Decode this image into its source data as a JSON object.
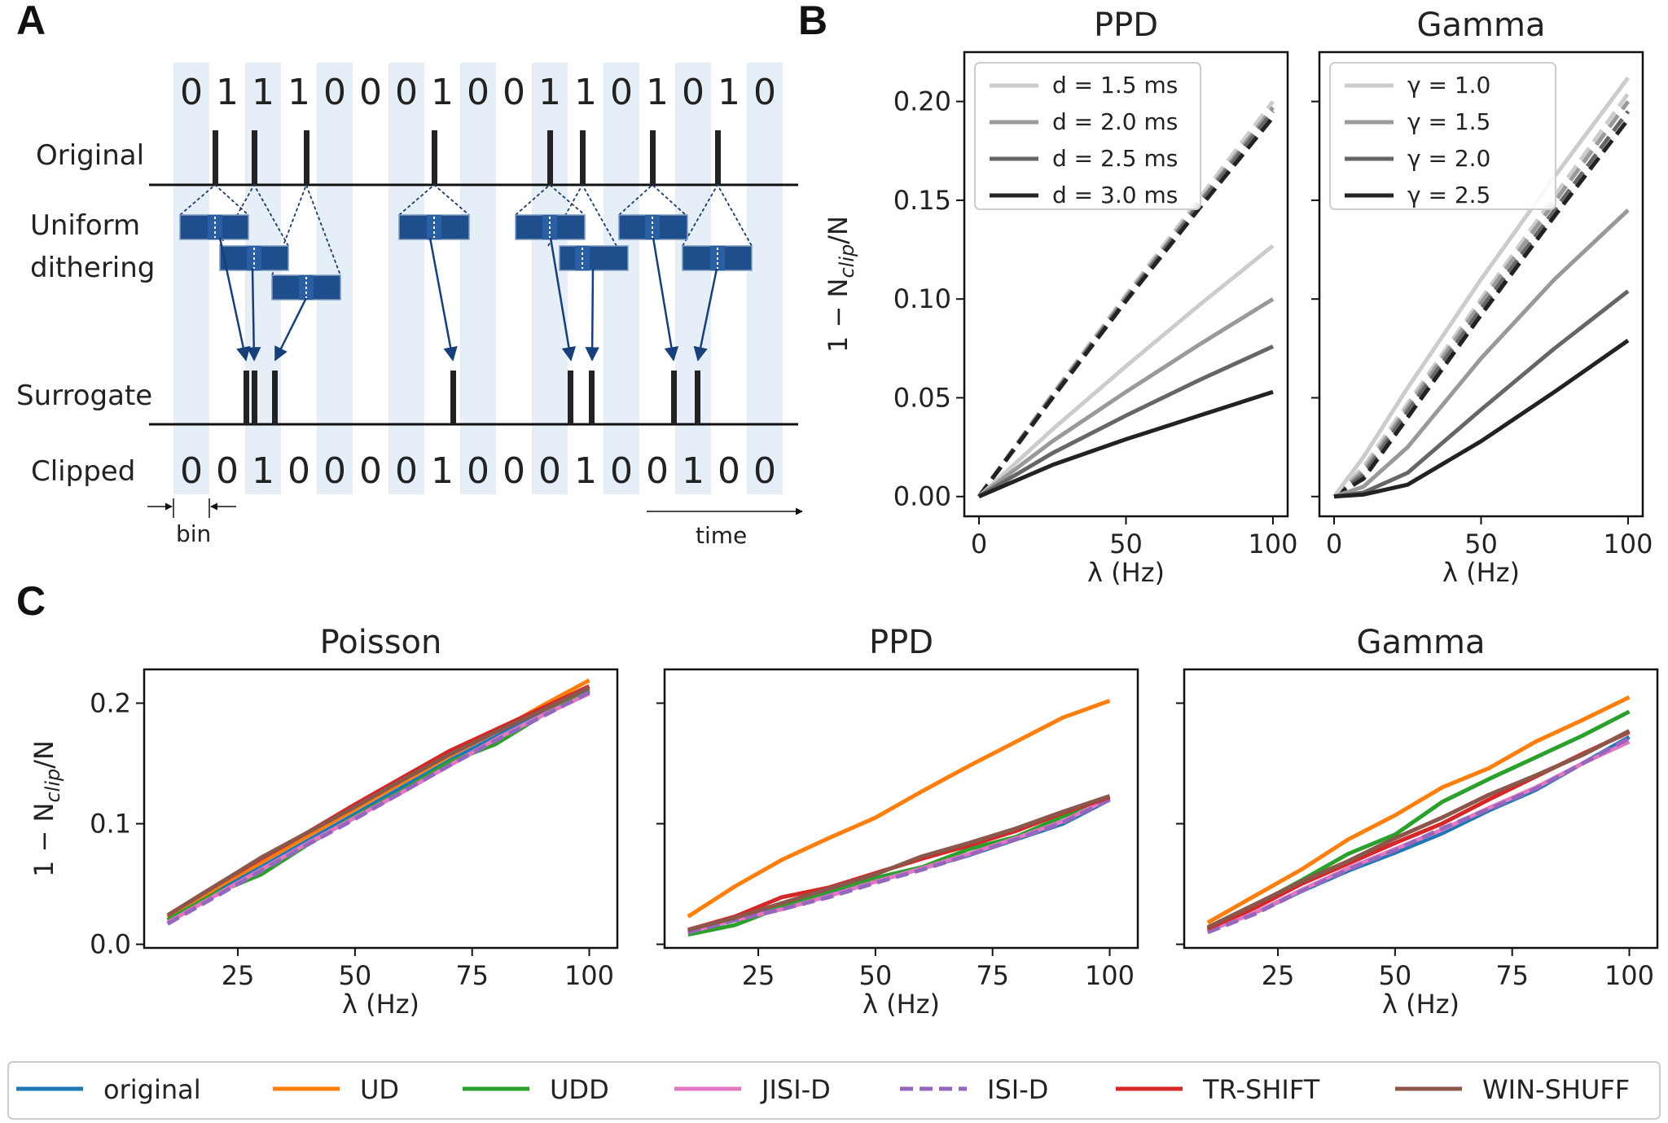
{
  "panels": {
    "a": "A",
    "b": "B",
    "c": "C"
  },
  "panel_a": {
    "original_bits": [
      "0",
      "1",
      "1",
      "1",
      "0",
      "0",
      "0",
      "1",
      "0",
      "0",
      "1",
      "1",
      "0",
      "1",
      "0",
      "1",
      "0"
    ],
    "clipped_bits": [
      "0",
      "0",
      "1",
      "0",
      "0",
      "0",
      "0",
      "1",
      "0",
      "0",
      "0",
      "1",
      "0",
      "0",
      "1",
      "0",
      "0"
    ],
    "row_labels": {
      "original": "Original",
      "dither_line1": "Uniform",
      "dither_line2": "dithering",
      "surrogate": "Surrogate",
      "clipped": "Clipped"
    },
    "bin_label": "bin",
    "time_label": "time",
    "colors": {
      "bin_shade": "#e6eef7",
      "window": "#1f4e8c",
      "arrow": "#173f7a"
    }
  },
  "chart_data": [
    {
      "type": "line",
      "title": "PPD",
      "xlabel": "λ (Hz)",
      "ylabel_main": "1 − N",
      "ylabel_sub": "clip",
      "ylabel_tail": "/N",
      "xlim": [
        -5,
        105
      ],
      "ylim": [
        -0.01,
        0.225
      ],
      "xticks": [
        0,
        50,
        100
      ],
      "xtick_labels": [
        "0",
        "50",
        "100"
      ],
      "yticks": [
        0.0,
        0.05,
        0.1,
        0.15,
        0.2
      ],
      "ytick_labels": [
        "0.00",
        "0.05",
        "0.10",
        "0.15",
        "0.20"
      ],
      "legend_position": "top-left",
      "series": [
        {
          "name": "d = 1.5 ms",
          "color": "#cccccc",
          "x": [
            0,
            25,
            50,
            75,
            100
          ],
          "values": [
            0,
            0.034,
            0.066,
            0.097,
            0.127
          ]
        },
        {
          "name": "d = 2.0 ms",
          "color": "#999999",
          "x": [
            0,
            25,
            50,
            75,
            100
          ],
          "values": [
            0,
            0.028,
            0.053,
            0.077,
            0.1
          ]
        },
        {
          "name": "d = 2.5 ms",
          "color": "#666666",
          "x": [
            0,
            25,
            50,
            75,
            100
          ],
          "values": [
            0,
            0.022,
            0.041,
            0.059,
            0.076
          ]
        },
        {
          "name": "d = 3.0 ms",
          "color": "#222222",
          "x": [
            0,
            25,
            50,
            75,
            100
          ],
          "values": [
            0,
            0.016,
            0.029,
            0.041,
            0.053
          ]
        }
      ],
      "dashed_series": [
        {
          "color": "#cccccc",
          "x": [
            0,
            25,
            50,
            75,
            100
          ],
          "values": [
            0,
            0.052,
            0.102,
            0.151,
            0.2
          ]
        },
        {
          "color": "#999999",
          "x": [
            0,
            25,
            50,
            75,
            100
          ],
          "values": [
            0,
            0.051,
            0.101,
            0.149,
            0.197
          ]
        },
        {
          "color": "#666666",
          "x": [
            0,
            25,
            50,
            75,
            100
          ],
          "values": [
            0,
            0.051,
            0.1,
            0.148,
            0.195
          ]
        },
        {
          "color": "#222222",
          "x": [
            0,
            25,
            50,
            75,
            100
          ],
          "values": [
            0,
            0.05,
            0.099,
            0.146,
            0.192
          ]
        }
      ]
    },
    {
      "type": "line",
      "title": "Gamma",
      "xlabel": "λ (Hz)",
      "xlim": [
        -5,
        105
      ],
      "ylim": [
        -0.01,
        0.225
      ],
      "xticks": [
        0,
        50,
        100
      ],
      "xtick_labels": [
        "0",
        "50",
        "100"
      ],
      "yticks": [
        0.0,
        0.05,
        0.1,
        0.15,
        0.2
      ],
      "legend_position": "top-left",
      "series": [
        {
          "name": "γ = 1.0",
          "color": "#cccccc",
          "x": [
            0,
            10,
            25,
            50,
            75,
            100
          ],
          "values": [
            0,
            0.02,
            0.055,
            0.11,
            0.162,
            0.212
          ]
        },
        {
          "name": "γ = 1.5",
          "color": "#999999",
          "x": [
            0,
            10,
            25,
            50,
            75,
            100
          ],
          "values": [
            0,
            0.005,
            0.025,
            0.07,
            0.11,
            0.145
          ]
        },
        {
          "name": "γ = 2.0",
          "color": "#666666",
          "x": [
            0,
            10,
            25,
            50,
            75,
            100
          ],
          "values": [
            0,
            0.002,
            0.012,
            0.044,
            0.075,
            0.104
          ]
        },
        {
          "name": "γ = 2.5",
          "color": "#222222",
          "x": [
            0,
            10,
            25,
            50,
            75,
            100
          ],
          "values": [
            0,
            0.001,
            0.006,
            0.028,
            0.053,
            0.079
          ]
        }
      ],
      "dashed_series": [
        {
          "color": "#cccccc",
          "x": [
            0,
            10,
            25,
            50,
            75,
            100
          ],
          "values": [
            0,
            0.015,
            0.047,
            0.1,
            0.152,
            0.204
          ]
        },
        {
          "color": "#999999",
          "x": [
            0,
            10,
            25,
            50,
            75,
            100
          ],
          "values": [
            0,
            0.013,
            0.045,
            0.098,
            0.149,
            0.2
          ]
        },
        {
          "color": "#666666",
          "x": [
            0,
            10,
            25,
            50,
            75,
            100
          ],
          "values": [
            0,
            0.011,
            0.043,
            0.095,
            0.145,
            0.195
          ]
        },
        {
          "color": "#222222",
          "x": [
            0,
            10,
            25,
            50,
            75,
            100
          ],
          "values": [
            0,
            0.009,
            0.04,
            0.092,
            0.142,
            0.191
          ]
        }
      ]
    },
    {
      "type": "line",
      "title": "Poisson",
      "xlabel": "λ (Hz)",
      "ylabel_main": "1 − N",
      "ylabel_sub": "clip",
      "ylabel_tail": "/N",
      "xlim": [
        5,
        106
      ],
      "ylim": [
        -0.003,
        0.228
      ],
      "xticks": [
        25,
        50,
        75,
        100
      ],
      "xtick_labels": [
        "25",
        "50",
        "75",
        "100"
      ],
      "yticks": [
        0.0,
        0.1,
        0.2
      ],
      "ytick_labels": [
        "0.0",
        "0.1",
        "0.2"
      ],
      "x": [
        10,
        20,
        30,
        40,
        50,
        60,
        70,
        80,
        90,
        100
      ],
      "series": [
        {
          "name": "original",
          "color": "#1f77b4",
          "values": [
            0.02,
            0.043,
            0.064,
            0.086,
            0.108,
            0.13,
            0.152,
            0.172,
            0.192,
            0.21
          ]
        },
        {
          "name": "UD",
          "color": "#ff7f0e",
          "values": [
            0.022,
            0.046,
            0.068,
            0.09,
            0.112,
            0.134,
            0.156,
            0.176,
            0.198,
            0.219
          ]
        },
        {
          "name": "UDD",
          "color": "#2ca02c",
          "values": [
            0.02,
            0.042,
            0.058,
            0.083,
            0.106,
            0.127,
            0.151,
            0.166,
            0.19,
            0.211
          ]
        },
        {
          "name": "JISI-D",
          "color": "#e377c2",
          "values": [
            0.018,
            0.04,
            0.062,
            0.084,
            0.105,
            0.126,
            0.148,
            0.17,
            0.19,
            0.208
          ]
        },
        {
          "name": "ISI-D",
          "color": "#9467bd",
          "values": [
            0.017,
            0.039,
            0.061,
            0.083,
            0.104,
            0.126,
            0.148,
            0.169,
            0.189,
            0.209
          ]
        },
        {
          "name": "TR-SHIFT",
          "color": "#d62728",
          "values": [
            0.024,
            0.048,
            0.071,
            0.093,
            0.116,
            0.138,
            0.16,
            0.178,
            0.196,
            0.214
          ]
        },
        {
          "name": "WIN-SHUFF",
          "color": "#8c564b",
          "values": [
            0.024,
            0.048,
            0.072,
            0.093,
            0.114,
            0.136,
            0.157,
            0.176,
            0.194,
            0.213
          ]
        }
      ]
    },
    {
      "type": "line",
      "title": "PPD",
      "xlabel": "λ (Hz)",
      "xlim": [
        5,
        106
      ],
      "ylim": [
        -0.003,
        0.228
      ],
      "xticks": [
        25,
        50,
        75,
        100
      ],
      "xtick_labels": [
        "25",
        "50",
        "75",
        "100"
      ],
      "yticks": [
        0.0,
        0.1,
        0.2
      ],
      "x": [
        10,
        20,
        30,
        40,
        50,
        60,
        70,
        80,
        90,
        100
      ],
      "series": [
        {
          "name": "original",
          "color": "#1f77b4",
          "values": [
            0.011,
            0.021,
            0.031,
            0.041,
            0.052,
            0.063,
            0.074,
            0.087,
            0.1,
            0.12
          ]
        },
        {
          "name": "UD",
          "color": "#ff7f0e",
          "values": [
            0.023,
            0.048,
            0.07,
            0.088,
            0.105,
            0.127,
            0.148,
            0.168,
            0.188,
            0.202
          ]
        },
        {
          "name": "UDD",
          "color": "#2ca02c",
          "values": [
            0.008,
            0.016,
            0.031,
            0.044,
            0.055,
            0.064,
            0.079,
            0.089,
            0.106,
            0.121
          ]
        },
        {
          "name": "JISI-D",
          "color": "#e377c2",
          "values": [
            0.01,
            0.02,
            0.029,
            0.04,
            0.052,
            0.063,
            0.075,
            0.088,
            0.102,
            0.121
          ]
        },
        {
          "name": "ISI-D",
          "color": "#9467bd",
          "values": [
            0.01,
            0.02,
            0.029,
            0.039,
            0.051,
            0.062,
            0.074,
            0.087,
            0.101,
            0.12
          ]
        },
        {
          "name": "TR-SHIFT",
          "color": "#d62728",
          "values": [
            0.012,
            0.023,
            0.039,
            0.047,
            0.059,
            0.071,
            0.082,
            0.094,
            0.109,
            0.122
          ]
        },
        {
          "name": "WIN-SHUFF",
          "color": "#8c564b",
          "values": [
            0.012,
            0.022,
            0.034,
            0.046,
            0.058,
            0.073,
            0.084,
            0.096,
            0.11,
            0.123
          ]
        }
      ]
    },
    {
      "type": "line",
      "title": "Gamma",
      "xlabel": "λ (Hz)",
      "xlim": [
        5,
        106
      ],
      "ylim": [
        -0.003,
        0.228
      ],
      "xticks": [
        25,
        50,
        75,
        100
      ],
      "xtick_labels": [
        "25",
        "50",
        "75",
        "100"
      ],
      "yticks": [
        0.0,
        0.1,
        0.2
      ],
      "x": [
        10,
        20,
        30,
        40,
        50,
        60,
        70,
        80,
        90,
        100
      ],
      "series": [
        {
          "name": "original",
          "color": "#1f77b4",
          "values": [
            0.012,
            0.026,
            0.044,
            0.061,
            0.076,
            0.092,
            0.111,
            0.128,
            0.15,
            0.172
          ]
        },
        {
          "name": "UD",
          "color": "#ff7f0e",
          "values": [
            0.018,
            0.04,
            0.062,
            0.087,
            0.107,
            0.13,
            0.146,
            0.168,
            0.186,
            0.205
          ]
        },
        {
          "name": "UDD",
          "color": "#2ca02c",
          "values": [
            0.012,
            0.032,
            0.053,
            0.075,
            0.091,
            0.118,
            0.137,
            0.155,
            0.173,
            0.193
          ]
        },
        {
          "name": "JISI-D",
          "color": "#e377c2",
          "values": [
            0.011,
            0.026,
            0.045,
            0.063,
            0.079,
            0.095,
            0.113,
            0.13,
            0.15,
            0.168
          ]
        },
        {
          "name": "ISI-D",
          "color": "#9467bd",
          "values": [
            0.01,
            0.025,
            0.044,
            0.062,
            0.078,
            0.096,
            0.112,
            0.129,
            0.15,
            0.171
          ]
        },
        {
          "name": "TR-SHIFT",
          "color": "#d62728",
          "values": [
            0.013,
            0.03,
            0.05,
            0.067,
            0.084,
            0.1,
            0.12,
            0.139,
            0.158,
            0.176
          ]
        },
        {
          "name": "WIN-SHUFF",
          "color": "#8c564b",
          "values": [
            0.014,
            0.033,
            0.052,
            0.069,
            0.088,
            0.105,
            0.124,
            0.14,
            0.157,
            0.177
          ]
        }
      ]
    }
  ],
  "legend": {
    "items": [
      {
        "name": "original",
        "color": "#1f77b4",
        "dashed": false
      },
      {
        "name": "UD",
        "color": "#ff7f0e",
        "dashed": false
      },
      {
        "name": "UDD",
        "color": "#2ca02c",
        "dashed": false
      },
      {
        "name": "JISI-D",
        "color": "#e377c2",
        "dashed": false
      },
      {
        "name": "ISI-D",
        "color": "#9467bd",
        "dashed": true
      },
      {
        "name": "TR-SHIFT",
        "color": "#d62728",
        "dashed": false
      },
      {
        "name": "WIN-SHUFF",
        "color": "#8c564b",
        "dashed": false
      }
    ]
  }
}
